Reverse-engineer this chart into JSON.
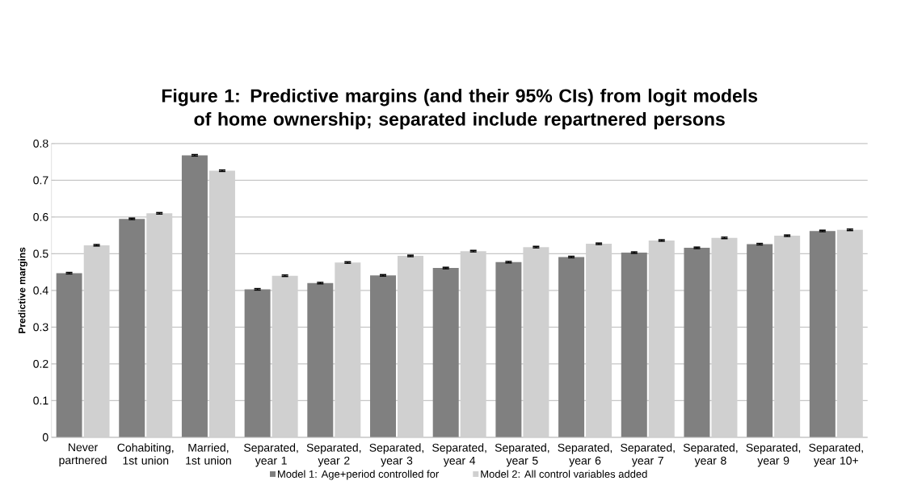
{
  "chart_data": {
    "type": "bar",
    "title": "Figure 1: Predictive margins (and their 95% CIs) from logit models of home ownership; separated include repartnered persons",
    "ylabel": "Predictive margins",
    "categories": [
      "Never partnered",
      "Cohabiting, 1st union",
      "Married, 1st union",
      "Separated, year 1",
      "Separated, year 2",
      "Separated, year 3",
      "Separated, year 4",
      "Separated, year 5",
      "Separated, year 6",
      "Separated, year 7",
      "Separated, year 8",
      "Separated, year 9",
      "Separated, year 10+"
    ],
    "series": [
      {
        "name": "Model 1: Age+period controlled for",
        "color": "#808080",
        "values": [
          0.447,
          0.595,
          0.768,
          0.403,
          0.42,
          0.441,
          0.461,
          0.477,
          0.491,
          0.503,
          0.516,
          0.526,
          0.562
        ],
        "errors": [
          0.002,
          0.002,
          0.002,
          0.002,
          0.002,
          0.002,
          0.002,
          0.002,
          0.002,
          0.002,
          0.002,
          0.002,
          0.002
        ]
      },
      {
        "name": "Model 2: All control variables added",
        "color": "#d0d0d0",
        "values": [
          0.523,
          0.61,
          0.726,
          0.44,
          0.476,
          0.494,
          0.507,
          0.518,
          0.527,
          0.536,
          0.543,
          0.549,
          0.565
        ],
        "errors": [
          0.002,
          0.002,
          0.002,
          0.002,
          0.002,
          0.002,
          0.002,
          0.002,
          0.002,
          0.002,
          0.002,
          0.002,
          0.002
        ]
      }
    ],
    "ylim": [
      0,
      0.8
    ],
    "yticks": [
      0,
      0.1,
      0.2,
      0.3,
      0.4,
      0.5,
      0.6,
      0.7,
      0.8
    ],
    "grid": "y",
    "legend": "bottom"
  }
}
